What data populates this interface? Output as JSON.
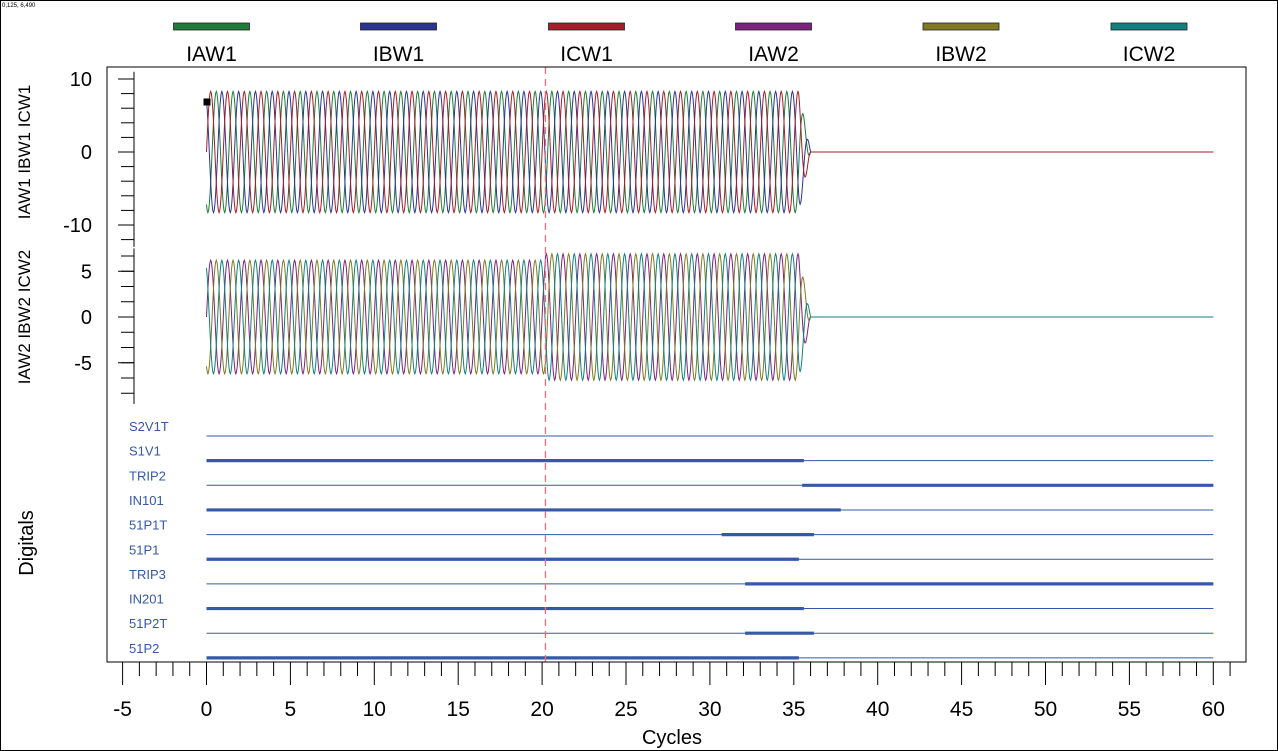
{
  "corner_readout": "0,125, 6,490",
  "chart_data": {
    "type": "line",
    "xlabel": "Cycles",
    "xlim": [
      -5,
      61.5
    ],
    "x_ticks": [
      -5,
      0,
      5,
      10,
      15,
      20,
      25,
      30,
      35,
      40,
      45,
      50,
      55,
      60
    ],
    "cursor_x": 20.2,
    "legend": {
      "placement": "top",
      "entries": [
        {
          "name": "IAW1",
          "color": "#1e7b3a"
        },
        {
          "name": "IBW1",
          "color": "#2a3590"
        },
        {
          "name": "ICW1",
          "color": "#a31d2a"
        },
        {
          "name": "IAW2",
          "color": "#7b227f"
        },
        {
          "name": "IBW2",
          "color": "#7f7a22"
        },
        {
          "name": "ICW2",
          "color": "#11807f"
        }
      ]
    },
    "analog_panels": [
      {
        "ylabel": "IAW1 IBW1 ICW1",
        "ylim": [
          -13,
          11
        ],
        "y_ticks": [
          10,
          0,
          -10
        ],
        "series": [
          "IAW1",
          "IBW1",
          "ICW1"
        ],
        "phase_order": [
          "ICW1",
          "IBW1",
          "IAW1"
        ],
        "amplitude": 8.3,
        "start": 0,
        "end": 35.3,
        "decay_cycles": 0.7,
        "baseline_color": "#a31d2a"
      },
      {
        "ylabel": "IAW2 IBW2 ICW2",
        "ylim": [
          -9.5,
          7.5
        ],
        "y_ticks": [
          5,
          0,
          -5
        ],
        "series": [
          "IAW2",
          "IBW2",
          "ICW2"
        ],
        "phase_order": [
          "IAW2",
          "ICW2",
          "IBW2"
        ],
        "amplitude": 6.2,
        "amplitude_after_cursor": 6.9,
        "start": 0,
        "end": 35.3,
        "decay_cycles": 0.7,
        "baseline_color": "#11807f"
      }
    ],
    "digitals": {
      "ylabel": "Digitals",
      "color": "#3558a8",
      "channels": [
        {
          "name": "S2V1T",
          "on": []
        },
        {
          "name": "S1V1",
          "on": [
            [
              0,
              35.6
            ]
          ]
        },
        {
          "name": "TRIP2",
          "on": [
            [
              35.5,
              60
            ]
          ]
        },
        {
          "name": "IN101",
          "on": [
            [
              0,
              37.8
            ]
          ]
        },
        {
          "name": "51P1T",
          "on": [
            [
              30.7,
              36.2
            ]
          ]
        },
        {
          "name": "51P1",
          "on": [
            [
              0,
              35.3
            ]
          ]
        },
        {
          "name": "TRIP3",
          "on": [
            [
              32.1,
              60
            ]
          ]
        },
        {
          "name": "IN201",
          "on": [
            [
              0,
              35.6
            ]
          ]
        },
        {
          "name": "51P2T",
          "on": [
            [
              32.1,
              36.2
            ]
          ]
        },
        {
          "name": "51P2",
          "on": [
            [
              0,
              35.3
            ]
          ]
        }
      ]
    }
  }
}
